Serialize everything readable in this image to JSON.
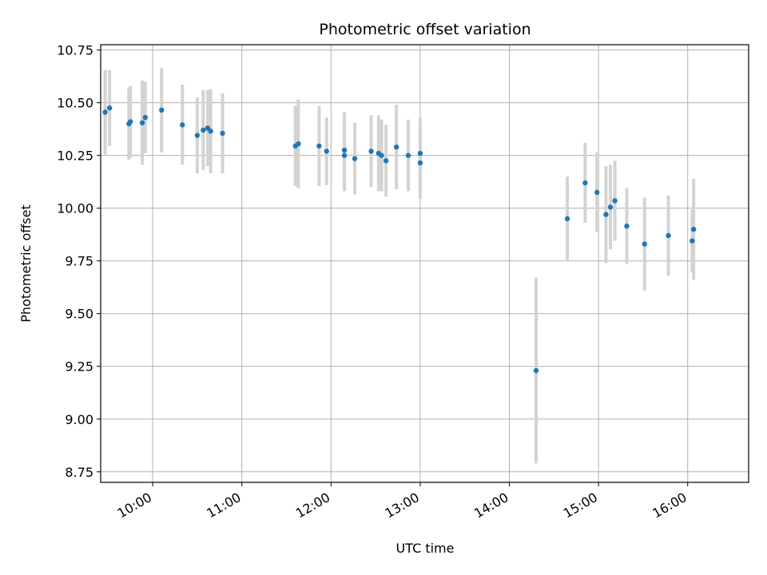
{
  "chart_data": {
    "type": "scatter",
    "title": "Photometric offset variation",
    "xlabel": "UTC time",
    "ylabel": "Photometric offset",
    "x_unit": "UTC time (HH:MM)",
    "xlim": [
      "09:25",
      "16:41"
    ],
    "ylim": [
      8.7,
      10.775
    ],
    "x_ticks": [
      "10:00",
      "11:00",
      "12:00",
      "13:00",
      "14:00",
      "15:00",
      "16:00"
    ],
    "y_ticks": [
      "8.75",
      "9.00",
      "9.25",
      "9.50",
      "9.75",
      "10.00",
      "10.25",
      "10.50",
      "10.75"
    ],
    "grid": true,
    "colors": {
      "points": "#1f77b4",
      "error_bars": "#d3d3d3",
      "grid": "#b0b0b0"
    },
    "series": [
      {
        "points": [
          {
            "x": "09:28",
            "y": 10.455,
            "err": 0.2
          },
          {
            "x": "09:31",
            "y": 10.475,
            "err": 0.18
          },
          {
            "x": "09:44",
            "y": 10.4,
            "err": 0.17
          },
          {
            "x": "09:45",
            "y": 10.41,
            "err": 0.17
          },
          {
            "x": "09:53",
            "y": 10.405,
            "err": 0.2
          },
          {
            "x": "09:55",
            "y": 10.43,
            "err": 0.17
          },
          {
            "x": "10:06",
            "y": 10.465,
            "err": 0.2
          },
          {
            "x": "10:20",
            "y": 10.395,
            "err": 0.19
          },
          {
            "x": "10:30",
            "y": 10.345,
            "err": 0.18
          },
          {
            "x": "10:34",
            "y": 10.37,
            "err": 0.19
          },
          {
            "x": "10:37",
            "y": 10.38,
            "err": 0.18
          },
          {
            "x": "10:39",
            "y": 10.365,
            "err": 0.2
          },
          {
            "x": "10:47",
            "y": 10.355,
            "err": 0.19
          },
          {
            "x": "11:36",
            "y": 10.295,
            "err": 0.19
          },
          {
            "x": "11:38",
            "y": 10.305,
            "err": 0.21
          },
          {
            "x": "11:52",
            "y": 10.295,
            "err": 0.19
          },
          {
            "x": "11:57",
            "y": 10.27,
            "err": 0.16
          },
          {
            "x": "12:09",
            "y": 10.275,
            "err": 0.18
          },
          {
            "x": "12:09",
            "y": 10.25,
            "err": 0.17
          },
          {
            "x": "12:16",
            "y": 10.235,
            "err": 0.17
          },
          {
            "x": "12:27",
            "y": 10.27,
            "err": 0.17
          },
          {
            "x": "12:32",
            "y": 10.26,
            "err": 0.18
          },
          {
            "x": "12:34",
            "y": 10.25,
            "err": 0.17
          },
          {
            "x": "12:37",
            "y": 10.225,
            "err": 0.17
          },
          {
            "x": "12:44",
            "y": 10.29,
            "err": 0.2
          },
          {
            "x": "12:52",
            "y": 10.25,
            "err": 0.17
          },
          {
            "x": "13:00",
            "y": 10.26,
            "err": 0.17
          },
          {
            "x": "13:00",
            "y": 10.215,
            "err": 0.17
          },
          {
            "x": "14:18",
            "y": 9.23,
            "err": 0.44
          },
          {
            "x": "14:39",
            "y": 9.95,
            "err": 0.2
          },
          {
            "x": "14:51",
            "y": 10.12,
            "err": 0.19
          },
          {
            "x": "14:59",
            "y": 10.075,
            "err": 0.19
          },
          {
            "x": "15:05",
            "y": 9.97,
            "err": 0.23
          },
          {
            "x": "15:08",
            "y": 10.005,
            "err": 0.2
          },
          {
            "x": "15:11",
            "y": 10.035,
            "err": 0.19
          },
          {
            "x": "15:19",
            "y": 9.915,
            "err": 0.18
          },
          {
            "x": "15:31",
            "y": 9.83,
            "err": 0.22
          },
          {
            "x": "15:47",
            "y": 9.87,
            "err": 0.19
          },
          {
            "x": "16:03",
            "y": 9.845,
            "err": 0.15
          },
          {
            "x": "16:04",
            "y": 9.9,
            "err": 0.24
          }
        ]
      }
    ]
  }
}
